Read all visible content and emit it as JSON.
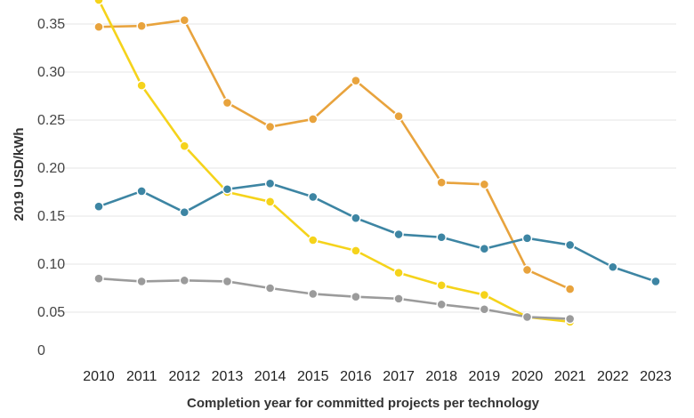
{
  "chart_data": {
    "type": "line",
    "xlabel": "Completion year for committed projects per technology",
    "ylabel": "2019 USD/kWh",
    "x": [
      "2010",
      "2011",
      "2012",
      "2013",
      "2014",
      "2015",
      "2016",
      "2017",
      "2018",
      "2019",
      "2020",
      "2021",
      "2022",
      "2023"
    ],
    "ylim": [
      0,
      0.38
    ],
    "yticks": [
      {
        "value": 0,
        "label": "0"
      },
      {
        "value": 0.05,
        "label": "0.05"
      },
      {
        "value": 0.1,
        "label": "0.10"
      },
      {
        "value": 0.15,
        "label": "0.15"
      },
      {
        "value": 0.2,
        "label": "0.20"
      },
      {
        "value": 0.25,
        "label": "0.25"
      },
      {
        "value": 0.3,
        "label": "0.30"
      },
      {
        "value": 0.35,
        "label": "0.35"
      }
    ],
    "grid": true,
    "series": [
      {
        "color": "#e8a33d",
        "values": [
          0.347,
          0.348,
          0.354,
          0.268,
          0.243,
          0.251,
          0.291,
          0.254,
          0.185,
          0.183,
          0.094,
          0.074,
          null,
          null
        ]
      },
      {
        "color": "#f5d31b",
        "values": [
          0.375,
          0.286,
          0.223,
          0.175,
          0.165,
          0.125,
          0.114,
          0.091,
          0.078,
          0.068,
          0.045,
          0.04,
          null,
          null
        ]
      },
      {
        "color": "#3d85a3",
        "values": [
          0.16,
          0.176,
          0.154,
          0.178,
          0.184,
          0.17,
          0.148,
          0.131,
          0.128,
          0.116,
          0.127,
          0.12,
          0.097,
          0.082
        ]
      },
      {
        "color": "#9b9b9b",
        "values": [
          0.085,
          0.082,
          0.083,
          0.082,
          0.075,
          0.069,
          0.066,
          0.064,
          0.058,
          0.053,
          0.045,
          0.043,
          null,
          null
        ]
      }
    ]
  }
}
